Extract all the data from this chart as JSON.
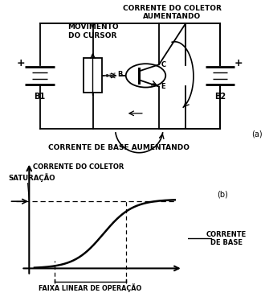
{
  "bg_color": "#ffffff",
  "circuit_label_a": "(a)",
  "circuit_label_b": "(b)",
  "top_text": "CORRENTE DO COLETOR\nAUMENTANDO",
  "movement_text": "MOVIMENTO\nDO CURSOR",
  "base_current_text": "CORRENTE DE BASE AUMENTANDO",
  "saturation_text": "SATURAÇÃO",
  "collector_current_label": "CORRENTE DO COLETOR",
  "base_current_label": "CORRENTE\nDE BASE",
  "linear_range_text": "FAIXA LINEAR DE OPERAÇÃO",
  "B1_label": "B1",
  "B2_label": "B2",
  "transistor_B": "B",
  "transistor_C": "C",
  "transistor_E": "E"
}
